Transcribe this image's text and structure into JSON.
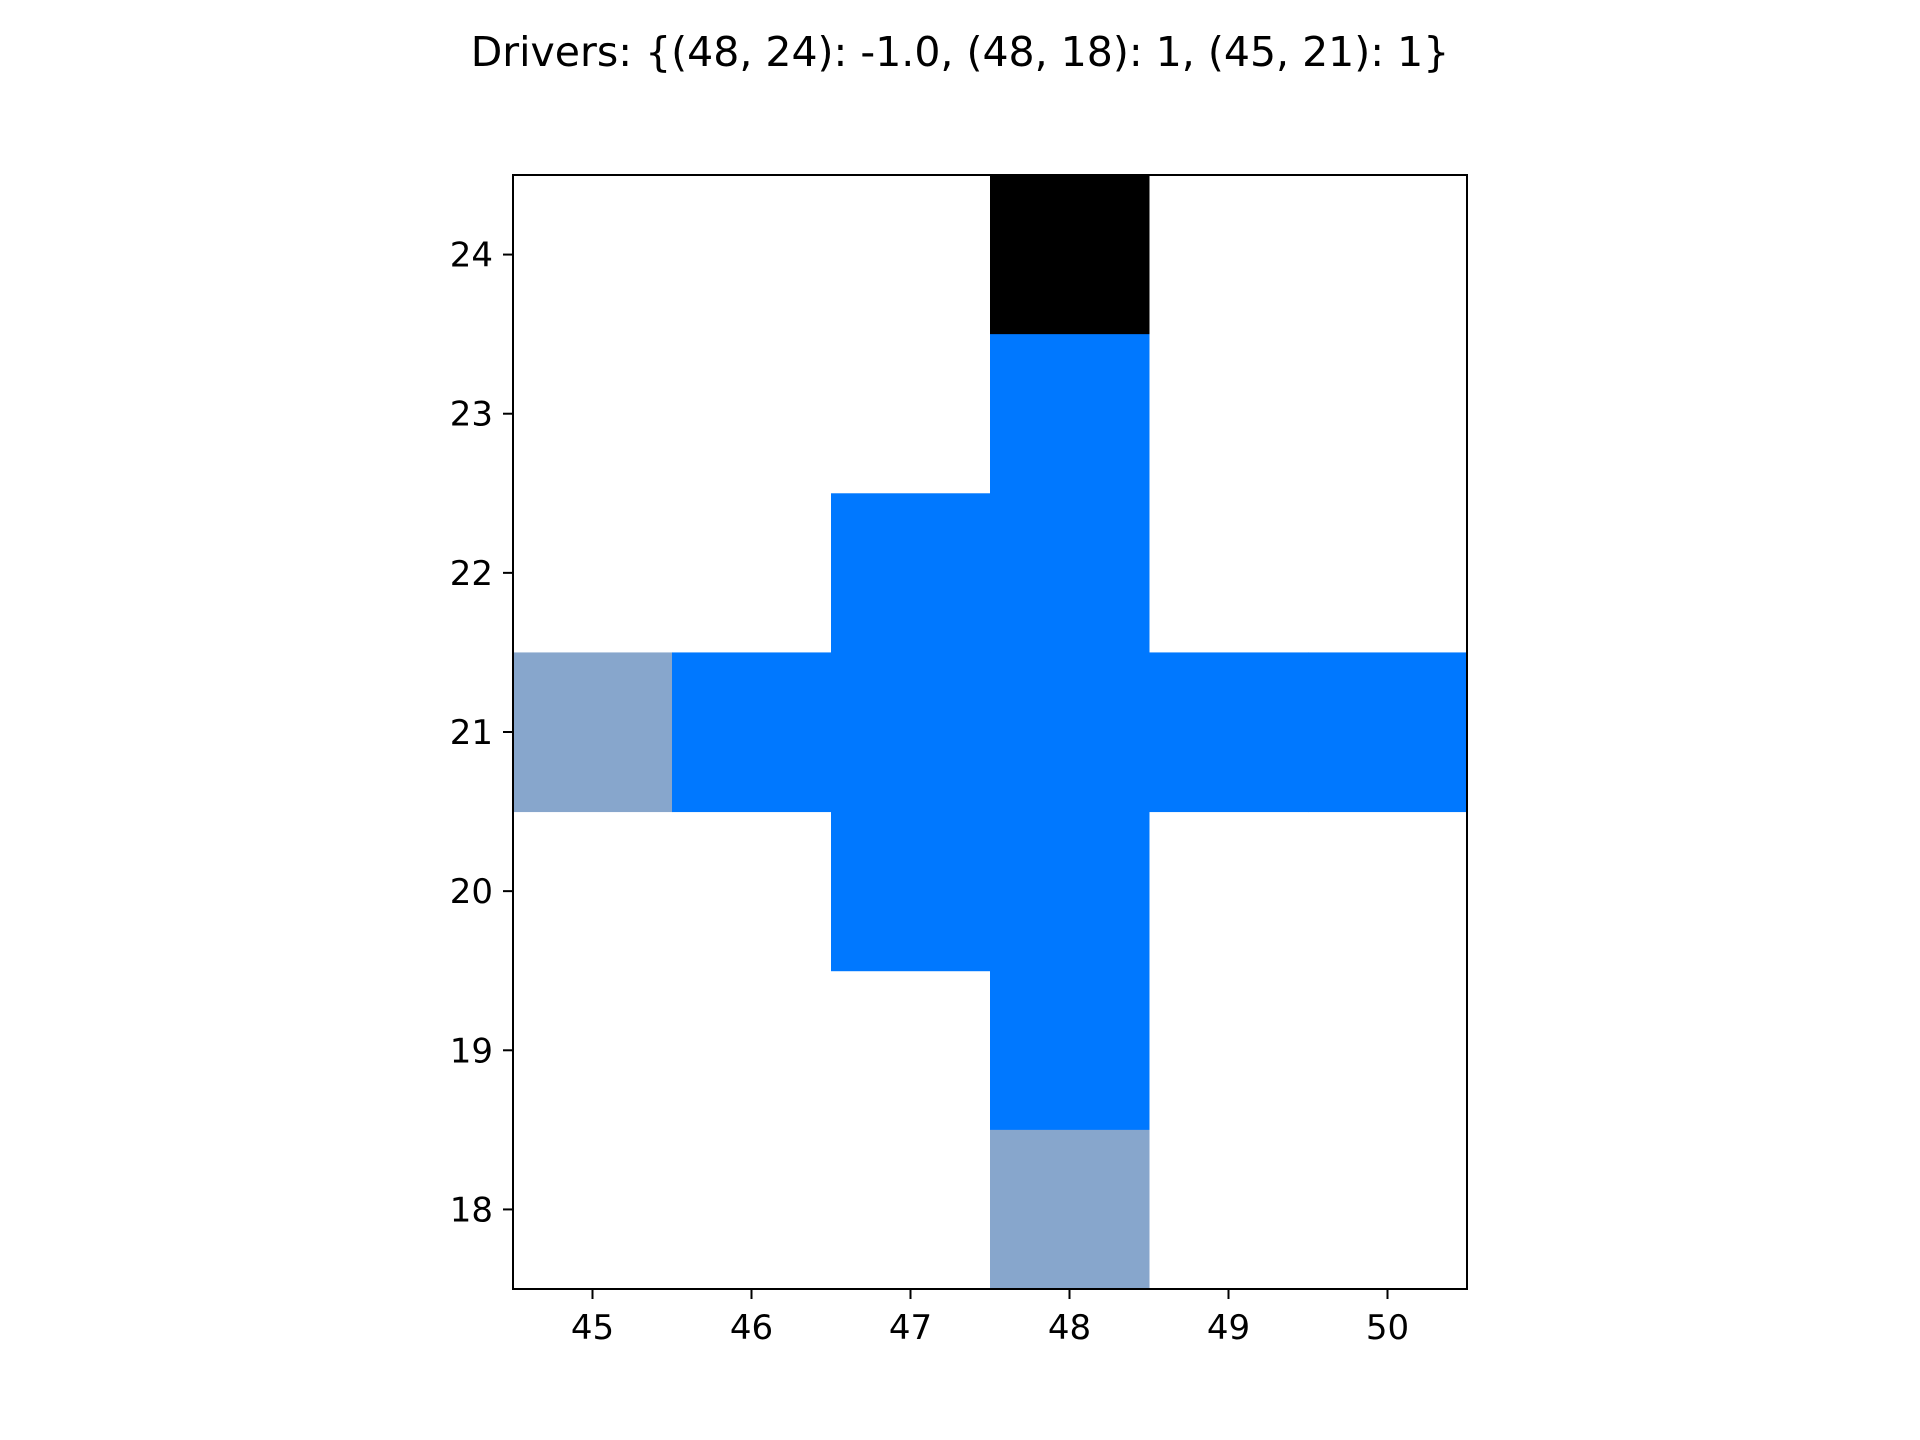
{
  "chart_data": {
    "type": "heatmap",
    "title": "Drivers: {(48, 24): -1.0, (48, 18): 1, (45, 21): 1}",
    "xlabel": "",
    "ylabel": "",
    "x_ticks": [
      45,
      46,
      47,
      48,
      49,
      50
    ],
    "y_ticks": [
      18,
      19,
      20,
      21,
      22,
      23,
      24
    ],
    "xlim": [
      44.5,
      50.5
    ],
    "ylim": [
      17.5,
      24.5
    ],
    "grid": false,
    "colors": {
      "driver_negative": "#000000",
      "driver_positive": "#87a6cc",
      "active": "#0078ff",
      "background": "#ffffff"
    },
    "cells": [
      {
        "x": 48,
        "y": 24,
        "state": "driver_negative"
      },
      {
        "x": 48,
        "y": 23,
        "state": "active"
      },
      {
        "x": 47,
        "y": 22,
        "state": "active"
      },
      {
        "x": 48,
        "y": 22,
        "state": "active"
      },
      {
        "x": 45,
        "y": 21,
        "state": "driver_positive"
      },
      {
        "x": 46,
        "y": 21,
        "state": "active"
      },
      {
        "x": 47,
        "y": 21,
        "state": "active"
      },
      {
        "x": 48,
        "y": 21,
        "state": "active"
      },
      {
        "x": 49,
        "y": 21,
        "state": "active"
      },
      {
        "x": 50,
        "y": 21,
        "state": "active"
      },
      {
        "x": 47,
        "y": 20,
        "state": "active"
      },
      {
        "x": 48,
        "y": 20,
        "state": "active"
      },
      {
        "x": 48,
        "y": 19,
        "state": "active"
      },
      {
        "x": 48,
        "y": 18,
        "state": "driver_positive"
      }
    ]
  }
}
